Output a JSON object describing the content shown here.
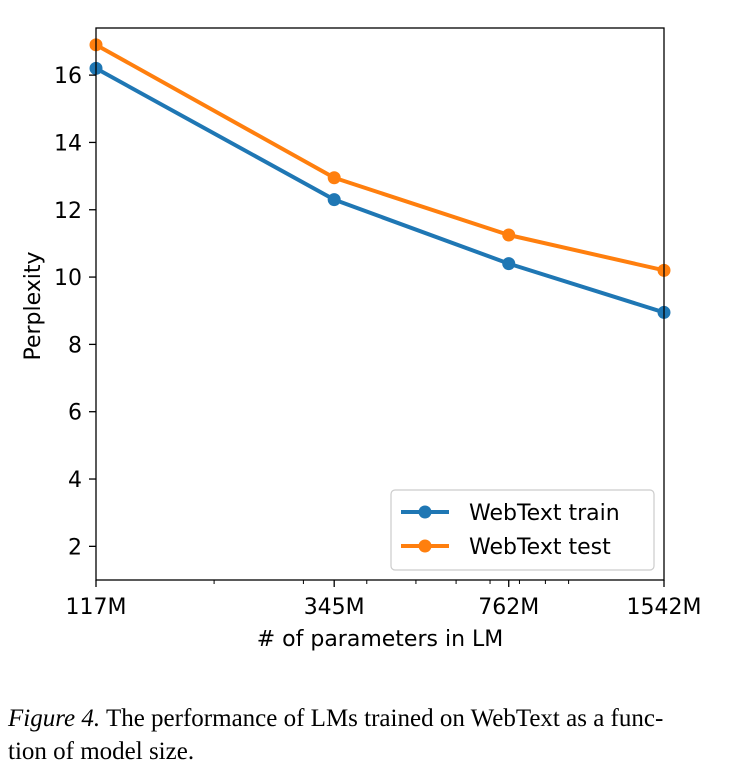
{
  "chart_data": {
    "type": "line",
    "title": "",
    "xlabel": "# of parameters in LM",
    "ylabel": "Perplexity",
    "x_scale": "log",
    "categories": [
      "117M",
      "345M",
      "762M",
      "1542M"
    ],
    "x": [
      117,
      345,
      762,
      1542
    ],
    "xlim": [
      117,
      1542
    ],
    "ylim": [
      1,
      17.4
    ],
    "yticks": [
      2,
      4,
      6,
      8,
      10,
      12,
      14,
      16
    ],
    "grid": false,
    "legend_position": "lower-right",
    "series": [
      {
        "name": "WebText train",
        "color": "#1f77b4",
        "values": [
          16.2,
          12.3,
          10.4,
          8.95
        ]
      },
      {
        "name": "WebText test",
        "color": "#ff7f0e",
        "values": [
          16.9,
          12.95,
          11.25,
          10.2
        ]
      }
    ]
  },
  "caption": {
    "figure_label": "Figure 4.",
    "line1": "The performance of LMs trained on WebText as a func-",
    "line2": "tion of model size."
  }
}
